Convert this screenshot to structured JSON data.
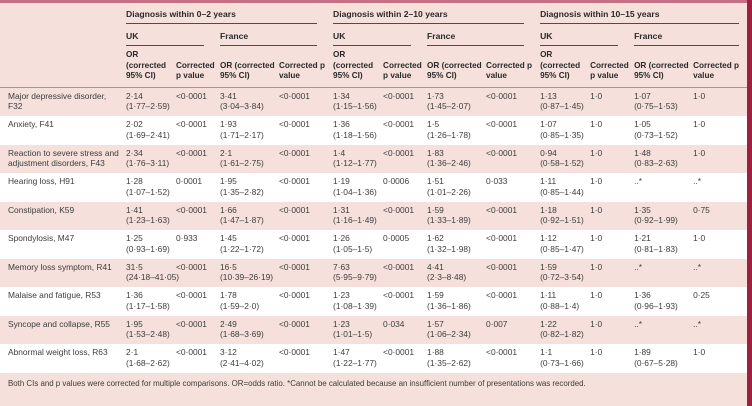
{
  "page": {
    "top_bar_color": "#c36f84",
    "right_bar_color": "#9e1f3f",
    "background_color": "#f5e0db"
  },
  "table": {
    "groups": [
      {
        "title": "Diagnosis within 0–2 years"
      },
      {
        "title": "Diagnosis within 2–10 years"
      },
      {
        "title": "Diagnosis within 10–15 years"
      }
    ],
    "regions": [
      "UK",
      "France"
    ],
    "col_header_or": "OR (corrected 95% CI)",
    "col_header_p": "Corrected p value",
    "rows": [
      {
        "label": "Major depressive disorder, F32",
        "cells": [
          {
            "or": "2·14",
            "ci": "(1·77–2·59)",
            "p": "<0·0001"
          },
          {
            "or": "3·41",
            "ci": "(3·04–3·84)",
            "p": "<0·0001"
          },
          {
            "or": "1·34",
            "ci": "(1·15–1·56)",
            "p": "<0·0001"
          },
          {
            "or": "1·73",
            "ci": "(1·45–2·07)",
            "p": "<0·0001"
          },
          {
            "or": "1·13",
            "ci": "(0·87–1·45)",
            "p": "1·0"
          },
          {
            "or": "1·07",
            "ci": "(0·75–1·53)",
            "p": "1·0"
          }
        ]
      },
      {
        "label": "Anxiety, F41",
        "cells": [
          {
            "or": "2·02",
            "ci": "(1·69–2·41)",
            "p": "<0·0001"
          },
          {
            "or": "1·93",
            "ci": "(1·71–2·17)",
            "p": "<0·0001"
          },
          {
            "or": "1·36",
            "ci": "(1·18–1·56)",
            "p": "<0·0001"
          },
          {
            "or": "1·5",
            "ci": "(1·26–1·78)",
            "p": "<0·0001"
          },
          {
            "or": "1·07",
            "ci": "(0·85–1·35)",
            "p": "1·0"
          },
          {
            "or": "1·05",
            "ci": "(0·73–1·52)",
            "p": "1·0"
          }
        ]
      },
      {
        "label": "Reaction to severe stress and adjustment disorders, F43",
        "cells": [
          {
            "or": "2·34",
            "ci": "(1·76–3·11)",
            "p": "<0·0001"
          },
          {
            "or": "2·1",
            "ci": "(1·61–2·75)",
            "p": "<0·0001"
          },
          {
            "or": "1·4",
            "ci": "(1·12–1·77)",
            "p": "<0·0001"
          },
          {
            "or": "1·83",
            "ci": "(1·36–2·46)",
            "p": "<0·0001"
          },
          {
            "or": "0·94",
            "ci": "(0·58–1·52)",
            "p": "1·0"
          },
          {
            "or": "1·48",
            "ci": "(0·83–2·63)",
            "p": "1·0"
          }
        ]
      },
      {
        "label": "Hearing loss, H91",
        "cells": [
          {
            "or": "1·28",
            "ci": "(1·07–1·52)",
            "p": "0·0001"
          },
          {
            "or": "1·95",
            "ci": "(1·35–2·82)",
            "p": "<0·0001"
          },
          {
            "or": "1·19",
            "ci": "(1·04–1·36)",
            "p": "0·0006"
          },
          {
            "or": "1·51",
            "ci": "(1·01–2·26)",
            "p": "0·033"
          },
          {
            "or": "1·11",
            "ci": "(0·85–1·44)",
            "p": "1·0"
          },
          {
            "or": "..*",
            "ci": "",
            "p": "..*"
          }
        ]
      },
      {
        "label": "Constipation, K59",
        "cells": [
          {
            "or": "1·41",
            "ci": "(1·23–1·63)",
            "p": "<0·0001"
          },
          {
            "or": "1·66",
            "ci": "(1·47–1·87)",
            "p": "<0·0001"
          },
          {
            "or": "1·31",
            "ci": "(1·16–1·49)",
            "p": "<0·0001"
          },
          {
            "or": "1·59",
            "ci": "(1·33–1·89)",
            "p": "<0·0001"
          },
          {
            "or": "1·18",
            "ci": "(0·92–1·51)",
            "p": "1·0"
          },
          {
            "or": "1·35",
            "ci": "(0·92–1·99)",
            "p": "0·75"
          }
        ]
      },
      {
        "label": "Spondylosis, M47",
        "cells": [
          {
            "or": "1·25",
            "ci": "(0·93–1·69)",
            "p": "0·933"
          },
          {
            "or": "1·45",
            "ci": "(1·22–1·72)",
            "p": "<0·0001"
          },
          {
            "or": "1·26",
            "ci": "(1·05–1·5)",
            "p": "0·0005"
          },
          {
            "or": "1·62",
            "ci": "(1·32–1·98)",
            "p": "<0·0001"
          },
          {
            "or": "1·12",
            "ci": "(0·85–1·47)",
            "p": "1·0"
          },
          {
            "or": "1·21",
            "ci": "(0·81–1·83)",
            "p": "1·0"
          }
        ]
      },
      {
        "label": "Memory loss symptom, R41",
        "cells": [
          {
            "or": "31·5",
            "ci": "(24·18–41·05)",
            "p": "<0·0001"
          },
          {
            "or": "16·5",
            "ci": "(10·39–26·19)",
            "p": "<0·0001"
          },
          {
            "or": "7·63",
            "ci": "(5·95–9·79)",
            "p": "<0·0001"
          },
          {
            "or": "4·41",
            "ci": "(2·3–8·48)",
            "p": "<0·0001"
          },
          {
            "or": "1·59",
            "ci": "(0·72–3·54)",
            "p": "1·0"
          },
          {
            "or": "..*",
            "ci": "",
            "p": "..*"
          }
        ]
      },
      {
        "label": "Malaise and fatigue, R53",
        "cells": [
          {
            "or": "1·36",
            "ci": "(1·17–1·58)",
            "p": "<0·0001"
          },
          {
            "or": "1·78",
            "ci": "(1·59–2·0)",
            "p": "<0·0001"
          },
          {
            "or": "1·23",
            "ci": "(1·08–1·39)",
            "p": "<0·0001"
          },
          {
            "or": "1·59",
            "ci": "(1·36–1·86)",
            "p": "<0·0001"
          },
          {
            "or": "1·11",
            "ci": "(0·88–1·4)",
            "p": "1·0"
          },
          {
            "or": "1·36",
            "ci": "(0·96–1·93)",
            "p": "0·25"
          }
        ]
      },
      {
        "label": "Syncope and collapse, R55",
        "cells": [
          {
            "or": "1·95",
            "ci": "(1·53–2·48)",
            "p": "<0·0001"
          },
          {
            "or": "2·49",
            "ci": "(1·68–3·69)",
            "p": "<0·0001"
          },
          {
            "or": "1·23",
            "ci": "(1·01–1·5)",
            "p": "0·034"
          },
          {
            "or": "1·57",
            "ci": "(1·06–2·34)",
            "p": "0·007"
          },
          {
            "or": "1·22",
            "ci": "(0·82–1·82)",
            "p": "1·0"
          },
          {
            "or": "..*",
            "ci": "",
            "p": "..*"
          }
        ]
      },
      {
        "label": "Abnormal weight loss, R63",
        "cells": [
          {
            "or": "2·1",
            "ci": "(1·68–2·62)",
            "p": "<0·0001"
          },
          {
            "or": "3·12",
            "ci": "(2·41–4·02)",
            "p": "<0·0001"
          },
          {
            "or": "1·47",
            "ci": "(1·22–1·77)",
            "p": "<0·0001"
          },
          {
            "or": "1·88",
            "ci": "(1·35–2·62)",
            "p": "<0·0001"
          },
          {
            "or": "1·1",
            "ci": "(0·73–1·66)",
            "p": "1·0"
          },
          {
            "or": "1·89",
            "ci": "(0·67–5·28)",
            "p": "1·0"
          }
        ]
      }
    ],
    "footnote": "Both CIs and p values were corrected for multiple comparisons. OR=odds ratio. *Cannot be calculated because an insufficient number of presentations was recorded."
  }
}
